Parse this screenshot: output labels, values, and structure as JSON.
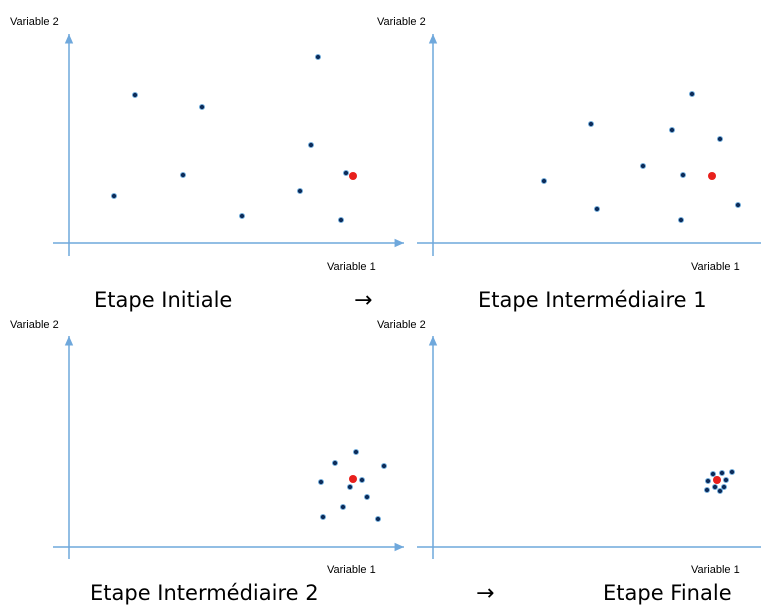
{
  "colors": {
    "axis": "#6fa8dc",
    "point": "#0d2c5a",
    "point_ring": "#7ab3df",
    "highlight": "#e8201c"
  },
  "panels": [
    {
      "caption": "Etape Initiale",
      "x_axis_label": "Variable 1",
      "y_axis_label": "Variable 2",
      "chart_data": {
        "type": "scatter",
        "xlabel": "Variable 1",
        "ylabel": "Variable 2",
        "points": [
          [
            135,
            95
          ],
          [
            202,
            107
          ],
          [
            318,
            57
          ],
          [
            311,
            145
          ],
          [
            183,
            175
          ],
          [
            114,
            196
          ],
          [
            300,
            191
          ],
          [
            242,
            216
          ],
          [
            341,
            220
          ],
          [
            346,
            173
          ]
        ],
        "highlight": [
          353,
          176
        ]
      }
    },
    {
      "caption": "Etape Intermédiaire 1",
      "x_axis_label": "Variable 1",
      "y_axis_label": "Variable 2",
      "chart_data": {
        "type": "scatter",
        "xlabel": "Variable 1",
        "ylabel": "Variable 2",
        "points": [
          [
            692,
            94
          ],
          [
            591,
            124
          ],
          [
            672,
            130
          ],
          [
            720,
            139
          ],
          [
            643,
            166
          ],
          [
            683,
            175
          ],
          [
            544,
            181
          ],
          [
            597,
            209
          ],
          [
            738,
            205
          ],
          [
            681,
            220
          ]
        ],
        "highlight": [
          712,
          176
        ]
      }
    },
    {
      "caption": "Etape Intermédiaire 2",
      "x_axis_label": "Variable 1",
      "y_axis_label": "Variable 2",
      "chart_data": {
        "type": "scatter",
        "xlabel": "Variable 1",
        "ylabel": "Variable 2",
        "points": [
          [
            356,
            452
          ],
          [
            335,
            463
          ],
          [
            384,
            466
          ],
          [
            321,
            482
          ],
          [
            362,
            480
          ],
          [
            350,
            487
          ],
          [
            367,
            497
          ],
          [
            343,
            507
          ],
          [
            323,
            517
          ],
          [
            378,
            519
          ]
        ],
        "highlight": [
          353,
          479
        ]
      }
    },
    {
      "caption": "Etape Finale",
      "x_axis_label": "Variable 1",
      "y_axis_label": "Variable 2",
      "chart_data": {
        "type": "scatter",
        "xlabel": "Variable 1",
        "ylabel": "Variable 2",
        "points": [
          [
            713,
            474
          ],
          [
            722,
            473
          ],
          [
            732,
            472
          ],
          [
            708,
            481
          ],
          [
            726,
            480
          ],
          [
            715,
            487
          ],
          [
            724,
            487
          ],
          [
            707,
            490
          ],
          [
            720,
            491
          ],
          [
            717,
            479
          ]
        ],
        "highlight": [
          717,
          480
        ]
      }
    }
  ],
  "arrows": [
    "→",
    "→"
  ]
}
